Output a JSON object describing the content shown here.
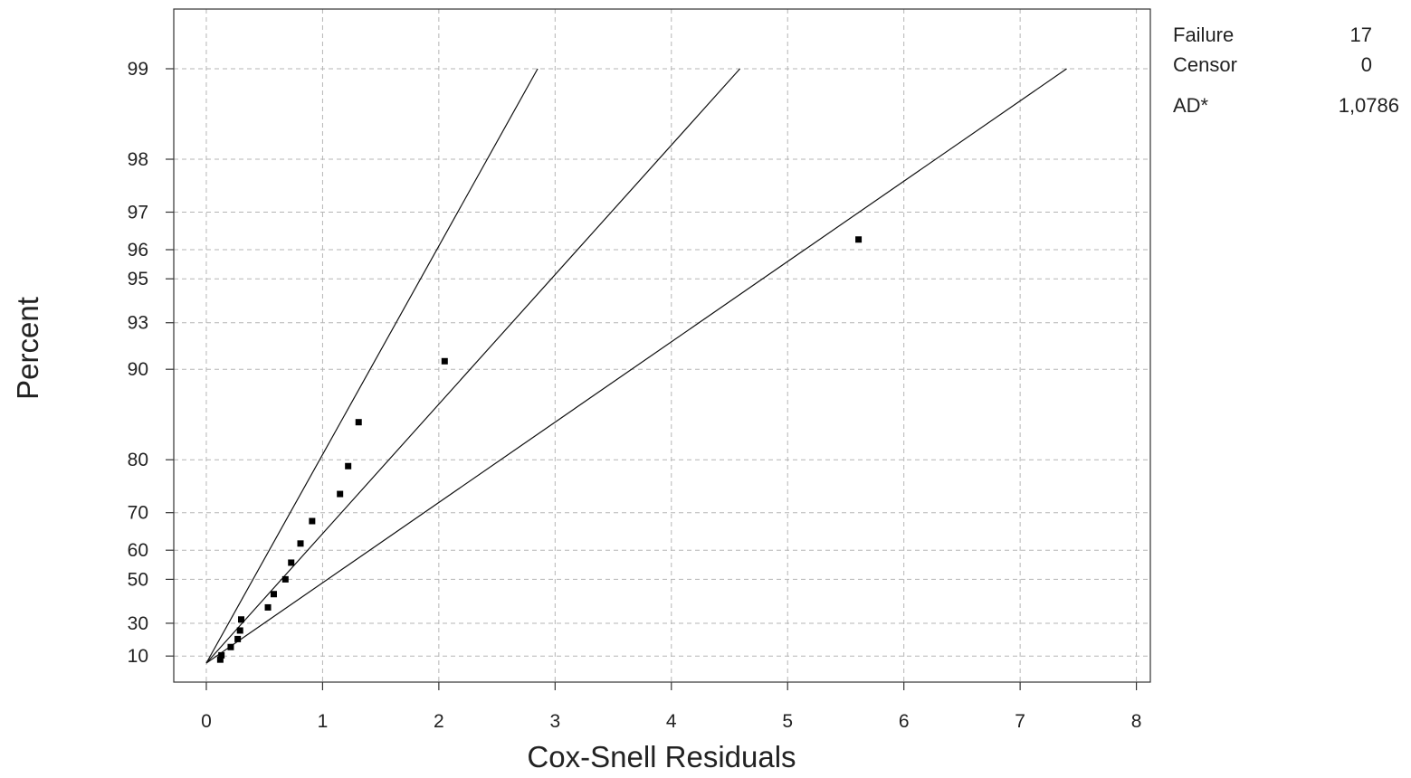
{
  "chart_data": {
    "type": "scatter",
    "title": "",
    "xlabel": "Cox-Snell Residuals",
    "ylabel": "Percent",
    "xlim": [
      -0.28,
      8.12
    ],
    "x_ticks": [
      "0",
      "1",
      "2",
      "3",
      "4",
      "5",
      "6",
      "7",
      "8"
    ],
    "y_ticks": [
      "10",
      "30",
      "50",
      "60",
      "70",
      "80",
      "90",
      "93",
      "95",
      "96",
      "97",
      "98",
      "99"
    ],
    "y_scale": "exponential-probability",
    "grid": true,
    "points": [
      {
        "x": 0.12,
        "y": 7.5
      },
      {
        "x": 0.13,
        "y": 10.5
      },
      {
        "x": 0.21,
        "y": 16
      },
      {
        "x": 0.27,
        "y": 21
      },
      {
        "x": 0.29,
        "y": 26
      },
      {
        "x": 0.3,
        "y": 32
      },
      {
        "x": 0.53,
        "y": 38
      },
      {
        "x": 0.58,
        "y": 44
      },
      {
        "x": 0.68,
        "y": 50
      },
      {
        "x": 0.73,
        "y": 56
      },
      {
        "x": 0.81,
        "y": 62
      },
      {
        "x": 0.91,
        "y": 68
      },
      {
        "x": 1.15,
        "y": 74
      },
      {
        "x": 1.22,
        "y": 79
      },
      {
        "x": 1.31,
        "y": 85
      },
      {
        "x": 2.05,
        "y": 90.6
      },
      {
        "x": 5.61,
        "y": 96.3
      }
    ],
    "fit_lines": [
      {
        "x0": 0,
        "y0": 5,
        "x1": 2.85,
        "y1": 99
      },
      {
        "x0": 0,
        "y0": 5,
        "x1": 4.59,
        "y1": 99
      },
      {
        "x0": 0,
        "y0": 5,
        "x1": 7.4,
        "y1": 99
      }
    ],
    "color": "#000000"
  },
  "stats": [
    {
      "key": "Failure",
      "value": "17"
    },
    {
      "key": "Censor",
      "value": "0"
    },
    {
      "key": "AD*",
      "value": "1,0786"
    }
  ]
}
